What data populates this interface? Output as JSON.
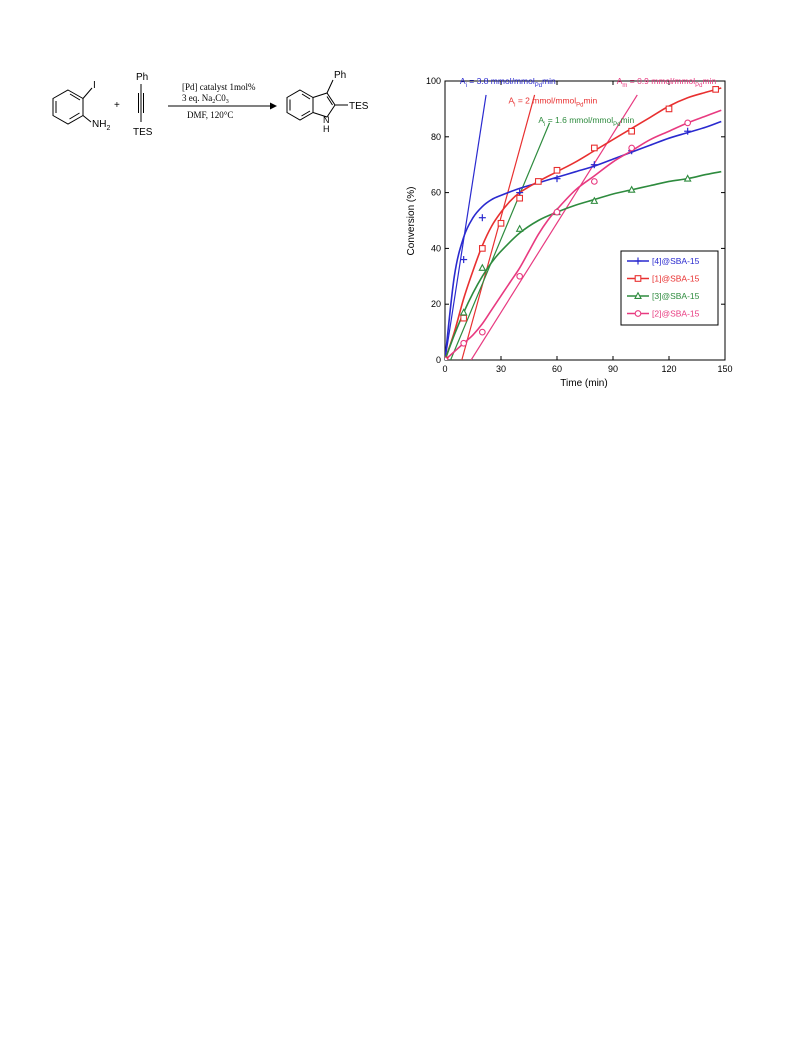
{
  "scheme": {
    "reactant1": {
      "iodo": "I",
      "amine": "NH",
      "amine_sub": "2"
    },
    "plus": "+",
    "reactant2": {
      "top": "Ph",
      "bottom": "TES"
    },
    "conditions": {
      "line1": "[Pd] catalyst 1mol%",
      "line2_pre": "3 eq. Na",
      "line2_sub1": "2",
      "line2_mid": "C0",
      "line2_sub2": "3",
      "line3": "DMF, 120°C"
    },
    "product": {
      "top": "Ph",
      "right": "TES",
      "nh": "N",
      "h": "H"
    }
  },
  "chart_data": {
    "type": "line",
    "xlabel": "Time (min)",
    "ylabel": "Conversion (%)",
    "xlim": [
      0,
      150
    ],
    "ylim": [
      0,
      100
    ],
    "xticks": [
      0,
      30,
      60,
      90,
      120,
      150
    ],
    "yticks": [
      0,
      20,
      40,
      60,
      80,
      100
    ],
    "legend_position": "lower-right",
    "series": [
      {
        "name": "[4]@SBA-15",
        "color": "#2a2acf",
        "marker": "plus",
        "x": [
          0,
          10,
          20,
          40,
          60,
          80,
          100,
          130
        ],
        "y": [
          0,
          36,
          51,
          60,
          65,
          70,
          75,
          82
        ],
        "fit_x": [
          0,
          5,
          10,
          15,
          20,
          25,
          30,
          40,
          50,
          60,
          70,
          80,
          90,
          100,
          110,
          120,
          130,
          140,
          148
        ],
        "fit_y": [
          0,
          30,
          44,
          51,
          55,
          57.5,
          59,
          61.5,
          63.5,
          65.5,
          67.5,
          69.5,
          72,
          74.5,
          77,
          79.5,
          81.5,
          83.5,
          85.5
        ]
      },
      {
        "name": "[1]@SBA-15",
        "color": "#e83030",
        "marker": "square",
        "x": [
          0,
          10,
          20,
          30,
          40,
          50,
          60,
          80,
          100,
          120,
          145
        ],
        "y": [
          0,
          15,
          40,
          49,
          58,
          64,
          68,
          76,
          82,
          90,
          97
        ],
        "fit_x": [
          0,
          5,
          10,
          15,
          20,
          25,
          30,
          35,
          40,
          50,
          60,
          70,
          80,
          90,
          100,
          110,
          120,
          130,
          140,
          148
        ],
        "fit_y": [
          0,
          10,
          22,
          32,
          41,
          48,
          53,
          57,
          60,
          64,
          67.5,
          71,
          75,
          79,
          83,
          87,
          91,
          94,
          96,
          97.5
        ]
      },
      {
        "name": "[3]@SBA-15",
        "color": "#2e8b3e",
        "marker": "triangle",
        "x": [
          0,
          10,
          20,
          40,
          60,
          80,
          100,
          130
        ],
        "y": [
          0,
          17,
          33,
          47,
          53,
          57,
          61,
          65
        ],
        "fit_x": [
          0,
          5,
          10,
          15,
          20,
          25,
          30,
          40,
          50,
          60,
          70,
          80,
          90,
          100,
          110,
          120,
          130,
          140,
          148
        ],
        "fit_y": [
          0,
          9,
          17,
          24,
          30,
          35,
          39,
          45.5,
          50,
          53,
          55.5,
          57.5,
          59.5,
          61,
          62.5,
          64,
          65,
          66.5,
          67.5
        ]
      },
      {
        "name": "[2]@SBA-15",
        "color": "#e83a80",
        "marker": "circle",
        "x": [
          0,
          10,
          20,
          40,
          60,
          80,
          100,
          130
        ],
        "y": [
          0,
          6,
          10,
          30,
          53,
          64,
          76,
          85
        ],
        "fit_x": [
          0,
          5,
          10,
          15,
          20,
          25,
          30,
          35,
          40,
          45,
          50,
          55,
          60,
          70,
          80,
          90,
          100,
          110,
          120,
          130,
          140,
          148
        ],
        "fit_y": [
          0,
          3,
          6,
          9,
          13,
          18,
          23,
          28,
          33,
          39,
          45,
          50,
          54,
          61,
          66,
          71,
          75,
          79,
          82,
          85,
          87.5,
          89.5
        ]
      }
    ],
    "tangents": [
      {
        "color": "#2a2acf",
        "x": [
          0,
          22
        ],
        "y": [
          0,
          95
        ]
      },
      {
        "color": "#e83030",
        "x": [
          9,
          48
        ],
        "y": [
          0,
          95
        ]
      },
      {
        "color": "#2e8b3e",
        "x": [
          3,
          56
        ],
        "y": [
          0,
          85
        ]
      },
      {
        "color": "#e83a80",
        "x": [
          14,
          103
        ],
        "y": [
          0,
          95
        ]
      }
    ],
    "annotations": [
      {
        "pre": "A",
        "sub1": "i",
        "mid": " = 3.8 mmol/mmol",
        "sub2": "Pd",
        "post": "min",
        "color": "#2a2acf",
        "x": 8,
        "y": 99
      },
      {
        "pre": "A",
        "sub1": "i",
        "mid": " = 2 mmol/mmol",
        "sub2": "Pd",
        "post": "min",
        "color": "#e83030",
        "x": 34,
        "y": 92
      },
      {
        "pre": "A",
        "sub1": "i",
        "mid": " = 1.6 mmol/mmol",
        "sub2": "Pd",
        "post": "min",
        "color": "#2e8b3e",
        "x": 50,
        "y": 85
      },
      {
        "pre": "A",
        "sub1": "m",
        "mid": " = 0.9 mmol/mmol",
        "sub2": "Pd",
        "post": "min",
        "color": "#e83a80",
        "x": 92,
        "y": 99
      }
    ]
  }
}
